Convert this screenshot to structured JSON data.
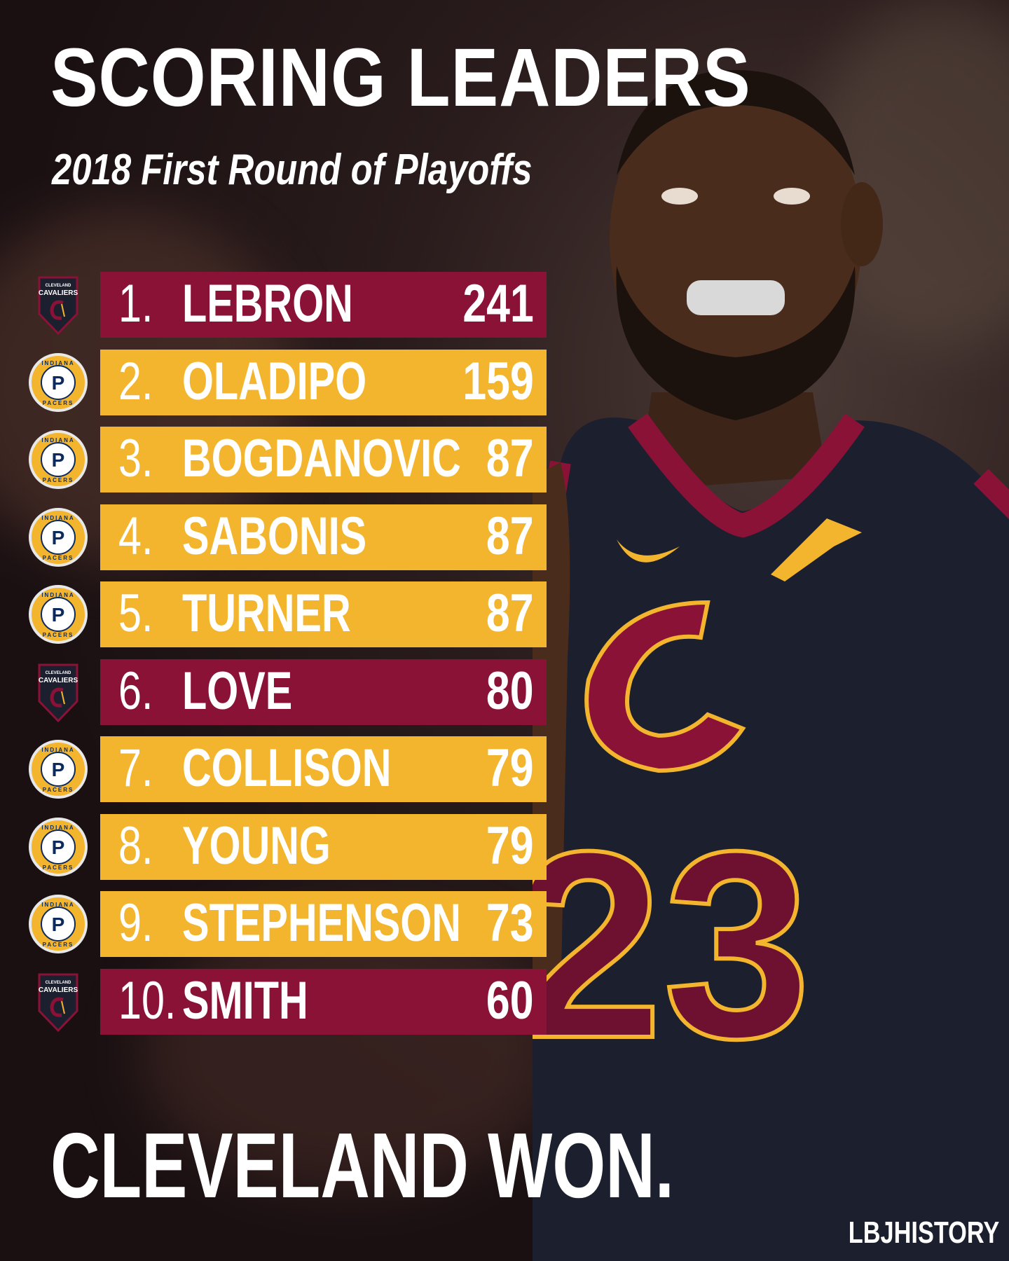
{
  "header": {
    "title": "SCORING LEADERS",
    "subtitle": "2018 First Round of Playoffs"
  },
  "leaders": [
    {
      "rank": "1.",
      "name": "LEBRON",
      "points": "241",
      "team": "cavaliers"
    },
    {
      "rank": "2.",
      "name": "OLADIPO",
      "points": "159",
      "team": "pacers"
    },
    {
      "rank": "3.",
      "name": "BOGDANOVIC",
      "points": "87",
      "team": "pacers"
    },
    {
      "rank": "4.",
      "name": "SABONIS",
      "points": "87",
      "team": "pacers"
    },
    {
      "rank": "5.",
      "name": "TURNER",
      "points": "87",
      "team": "pacers"
    },
    {
      "rank": "6.",
      "name": "LOVE",
      "points": "80",
      "team": "cavaliers"
    },
    {
      "rank": "7.",
      "name": "COLLISON",
      "points": "79",
      "team": "pacers"
    },
    {
      "rank": "8.",
      "name": "YOUNG",
      "points": "79",
      "team": "pacers"
    },
    {
      "rank": "9.",
      "name": "STEPHENSON",
      "points": "73",
      "team": "pacers"
    },
    {
      "rank": "10.",
      "name": "SMITH",
      "points": "60",
      "team": "cavaliers"
    }
  ],
  "logos": {
    "cavaliers": {
      "icon": "cavaliers-logo-icon",
      "text_top": "CLEVELAND",
      "text_main": "CAVALIERS"
    },
    "pacers": {
      "icon": "pacers-logo-icon",
      "text_top": "INDIANA",
      "text_bottom": "PACERS",
      "letter": "P"
    }
  },
  "jersey": {
    "number": "23"
  },
  "footer": {
    "headline": "CLEVELAND WON.",
    "credit": "LBJHISTORY"
  },
  "colors": {
    "cavaliers_wine": "#8a1237",
    "pacers_gold": "#f3b52d",
    "pacers_navy": "#0d2a5c",
    "jersey_navy": "#1c1f2e",
    "text": "#ffffff"
  }
}
